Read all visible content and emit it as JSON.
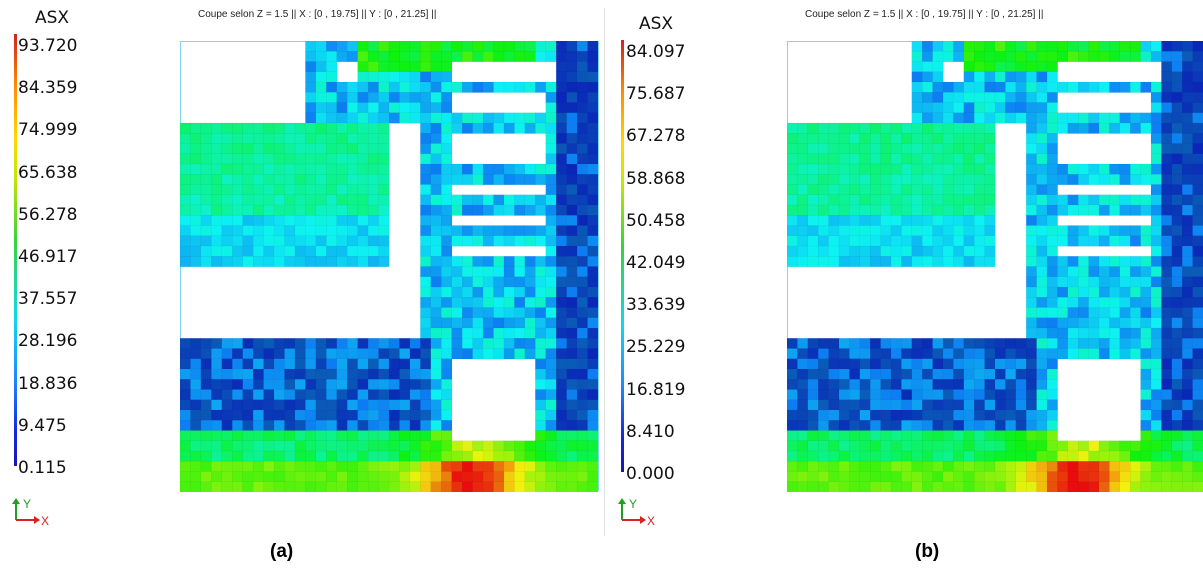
{
  "panels": [
    {
      "legend_title": "ASX",
      "legend_values": [
        "93.720",
        "84.359",
        "74.999",
        "65.638",
        "56.278",
        "46.917",
        "37.557",
        "28.196",
        "18.836",
        "9.475",
        "0.115"
      ],
      "plot_title": "Coupe selon Z = 1.5 || X : [0 , 19.75] || Y : [0 , 21.25] ||",
      "axis_y_label": "Y",
      "axis_x_label": "X",
      "caption": "(a)"
    },
    {
      "legend_title": "ASX",
      "legend_values": [
        "84.097",
        "75.687",
        "67.278",
        "58.868",
        "50.458",
        "42.049",
        "33.639",
        "25.229",
        "16.819",
        "8.410",
        "0.000"
      ],
      "plot_title": "Coupe selon Z = 1.5 || X : [0 , 19.75] || Y : [0 , 21.25] ||",
      "axis_y_label": "Y",
      "axis_x_label": "X",
      "caption": "(b)"
    }
  ],
  "colors": {
    "frame": "#7fd8ea",
    "x_axis": "#e02020",
    "y_axis": "#20a020"
  }
}
